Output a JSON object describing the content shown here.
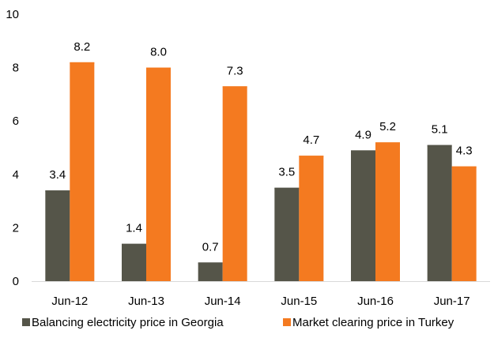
{
  "chart_data": {
    "type": "bar",
    "title": "",
    "xlabel": "",
    "ylabel": "",
    "categories": [
      "Jun-12",
      "Jun-13",
      "Jun-14",
      "Jun-15",
      "Jun-16",
      "Jun-17"
    ],
    "ylim": [
      0,
      10
    ],
    "yticks": [
      "0",
      "2",
      "4",
      "6",
      "8",
      "10"
    ],
    "grid": false,
    "legend_position": "bottom",
    "series": [
      {
        "name": "Balancing electricity price in Georgia",
        "color": "#555549",
        "values": [
          3.4,
          1.4,
          0.7,
          3.5,
          4.9,
          5.1
        ],
        "labels": [
          "3.4",
          "1.4",
          "0.7",
          "3.5",
          "4.9",
          "5.1"
        ]
      },
      {
        "name": "Market clearing price in Turkey",
        "color": "#F47A20",
        "values": [
          8.2,
          8.0,
          7.3,
          4.7,
          5.2,
          4.3
        ],
        "labels": [
          "8.2",
          "8.0",
          "7.3",
          "4.7",
          "5.2",
          "4.3"
        ]
      }
    ]
  }
}
